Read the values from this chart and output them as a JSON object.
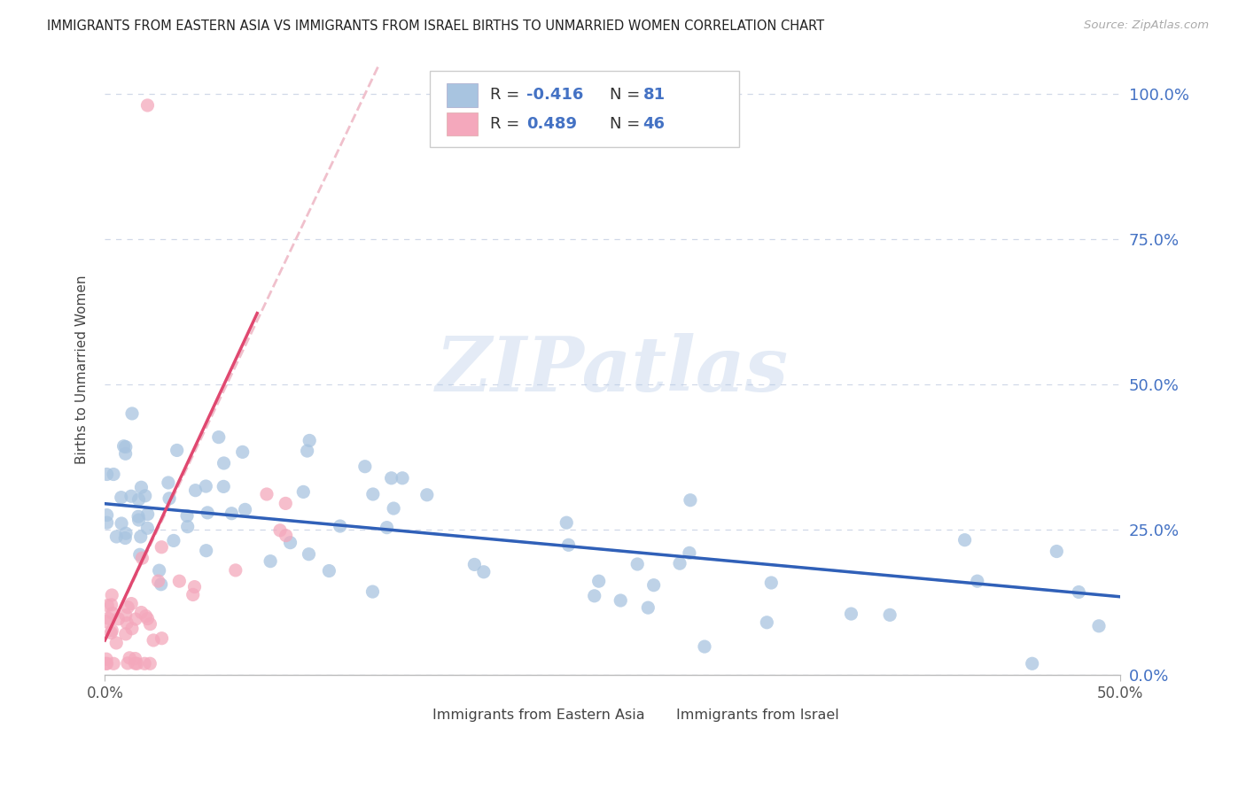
{
  "title": "IMMIGRANTS FROM EASTERN ASIA VS IMMIGRANTS FROM ISRAEL BIRTHS TO UNMARRIED WOMEN CORRELATION CHART",
  "source": "Source: ZipAtlas.com",
  "ylabel": "Births to Unmarried Women",
  "ytick_values": [
    0.0,
    0.25,
    0.5,
    0.75,
    1.0
  ],
  "ytick_labels_right": [
    "0.0%",
    "25.0%",
    "50.0%",
    "75.0%",
    "100.0%"
  ],
  "xlim": [
    0.0,
    0.5
  ],
  "ylim": [
    0.0,
    1.05
  ],
  "series1_color": "#a8c4e0",
  "series2_color": "#f4a8bc",
  "line1_color": "#3060b8",
  "line2_color": "#e04870",
  "dash_color1": "#c8d8f0",
  "dash_color2": "#f0c0cc",
  "blue_text_color": "#4472c4",
  "grid_color": "#d0d8e8",
  "bg_color": "#ffffff",
  "r1": "-0.416",
  "n1": "81",
  "r2": "0.489",
  "n2": "46",
  "legend1_label": "Immigrants from Eastern Asia",
  "legend2_label": "Immigrants from Israel",
  "watermark_text": "ZIPatlas"
}
